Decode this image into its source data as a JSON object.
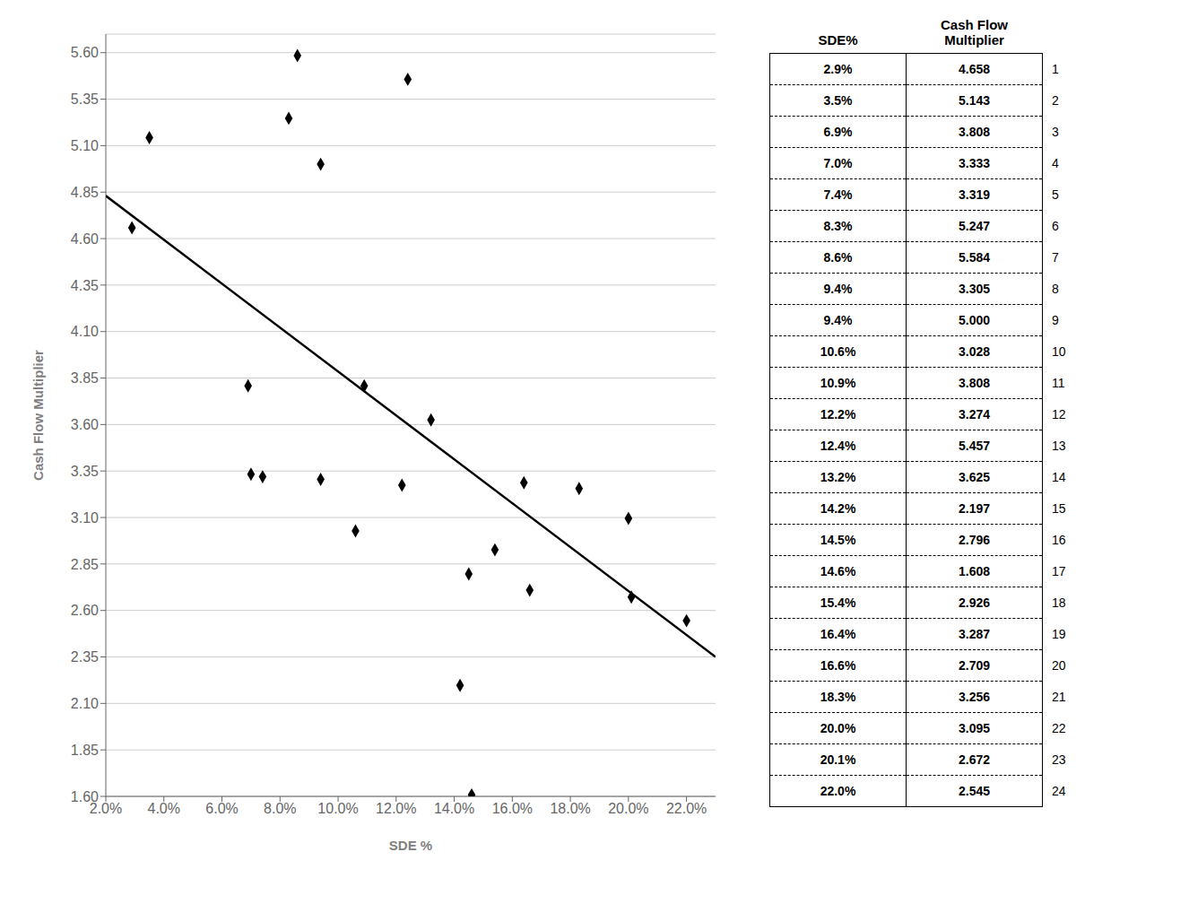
{
  "chart_data": {
    "type": "scatter",
    "xlabel": "SDE %",
    "ylabel": "Cash Flow Multiplier",
    "series": [
      {
        "type": "scatter",
        "marker": "diamond",
        "color": "#000000",
        "x": [
          2.9,
          3.5,
          6.9,
          7.0,
          7.4,
          8.3,
          8.6,
          9.4,
          9.4,
          10.6,
          10.9,
          12.2,
          12.4,
          13.2,
          14.2,
          14.5,
          14.6,
          15.4,
          16.4,
          16.6,
          18.3,
          20.0,
          20.1,
          22.0
        ],
        "values": [
          4.658,
          5.143,
          3.808,
          3.333,
          3.319,
          5.247,
          5.584,
          3.305,
          5.0,
          3.028,
          3.808,
          3.274,
          5.457,
          3.625,
          2.197,
          2.796,
          1.608,
          2.926,
          3.287,
          2.709,
          3.256,
          3.095,
          2.672,
          2.545
        ]
      },
      {
        "type": "line",
        "color": "#000000",
        "x": [
          2.0,
          23.0
        ],
        "values": [
          4.83,
          2.35
        ]
      }
    ],
    "xlim": [
      2.0,
      23.0
    ],
    "xticks": [
      {
        "value": 2.0,
        "label": "2.0%"
      },
      {
        "value": 4.0,
        "label": "4.0%"
      },
      {
        "value": 6.0,
        "label": "6.0%"
      },
      {
        "value": 8.0,
        "label": "8.0%"
      },
      {
        "value": 10.0,
        "label": "10.0%"
      },
      {
        "value": 12.0,
        "label": "12.0%"
      },
      {
        "value": 14.0,
        "label": "14.0%"
      },
      {
        "value": 16.0,
        "label": "16.0%"
      },
      {
        "value": 18.0,
        "label": "18.0%"
      },
      {
        "value": 20.0,
        "label": "20.0%"
      },
      {
        "value": 22.0,
        "label": "22.0%"
      }
    ],
    "ylim": [
      1.6,
      5.7
    ],
    "yticks": [
      {
        "value": 1.6,
        "label": "1.60"
      },
      {
        "value": 1.85,
        "label": "1.85"
      },
      {
        "value": 2.1,
        "label": "2.10"
      },
      {
        "value": 2.35,
        "label": "2.35"
      },
      {
        "value": 2.6,
        "label": "2.60"
      },
      {
        "value": 2.85,
        "label": "2.85"
      },
      {
        "value": 3.1,
        "label": "3.10"
      },
      {
        "value": 3.35,
        "label": "3.35"
      },
      {
        "value": 3.6,
        "label": "3.60"
      },
      {
        "value": 3.85,
        "label": "3.85"
      },
      {
        "value": 4.1,
        "label": "4.10"
      },
      {
        "value": 4.35,
        "label": "4.35"
      },
      {
        "value": 4.6,
        "label": "4.60"
      },
      {
        "value": 4.85,
        "label": "4.85"
      },
      {
        "value": 5.1,
        "label": "5.10"
      },
      {
        "value": 5.35,
        "label": "5.35"
      },
      {
        "value": 5.6,
        "label": "5.60"
      }
    ],
    "grid": "y",
    "table": {
      "headers": [
        "SDE%",
        "Cash Flow\nMultiplier"
      ],
      "columns": [
        [
          "2.9%",
          "3.5%",
          "6.9%",
          "7.0%",
          "7.4%",
          "8.3%",
          "8.6%",
          "9.4%",
          "9.4%",
          "10.6%",
          "10.9%",
          "12.2%",
          "12.4%",
          "13.2%",
          "14.2%",
          "14.5%",
          "14.6%",
          "15.4%",
          "16.4%",
          "16.6%",
          "18.3%",
          "20.0%",
          "20.1%",
          "22.0%"
        ],
        [
          "4.658",
          "5.143",
          "3.808",
          "3.333",
          "3.319",
          "5.247",
          "5.584",
          "3.305",
          "5.000",
          "3.028",
          "3.808",
          "3.274",
          "5.457",
          "3.625",
          "2.197",
          "2.796",
          "1.608",
          "2.926",
          "3.287",
          "2.709",
          "3.256",
          "3.095",
          "2.672",
          "2.545"
        ]
      ],
      "row_labels": [
        1,
        2,
        3,
        4,
        5,
        6,
        7,
        8,
        9,
        10,
        11,
        12,
        13,
        14,
        15,
        16,
        17,
        18,
        19,
        20,
        21,
        22,
        23,
        24
      ]
    }
  }
}
